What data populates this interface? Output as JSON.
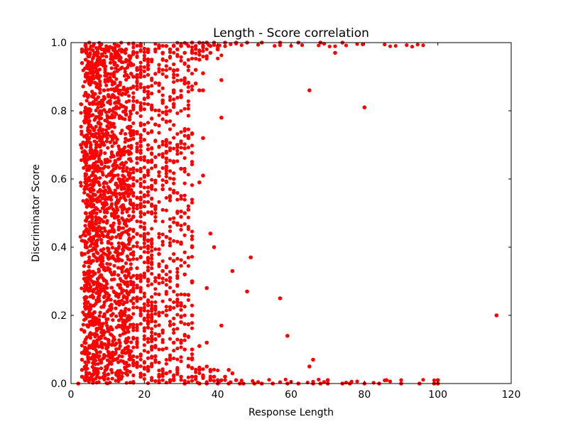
{
  "chart_data": {
    "type": "scatter",
    "title": "Length - Score correlation",
    "xlabel": "Response Length",
    "ylabel": "Discriminator Score",
    "xlim": [
      0,
      120
    ],
    "ylim": [
      0,
      1.0
    ],
    "xticks": [
      0,
      20,
      40,
      60,
      80,
      100,
      120
    ],
    "yticks": [
      0.0,
      0.2,
      0.4,
      0.6,
      0.8,
      1.0
    ],
    "xtick_labels": [
      "0",
      "20",
      "40",
      "60",
      "80",
      "100",
      "120"
    ],
    "ytick_labels": [
      "0.0",
      "0.2",
      "0.4",
      "0.6",
      "0.8",
      "1.0"
    ],
    "grid": false,
    "point_color": "#ff0000",
    "series": [
      {
        "points": [
          [
            2,
            0.0
          ],
          [
            3,
            0.98
          ],
          [
            3,
            0.94
          ],
          [
            3,
            0.09
          ],
          [
            3,
            0.07
          ],
          [
            3,
            0.04
          ],
          [
            3,
            0.02
          ],
          [
            4,
            0.99
          ],
          [
            4,
            0.95
          ],
          [
            4,
            0.9
          ],
          [
            4,
            0.85
          ],
          [
            4,
            0.8
          ],
          [
            4,
            0.7
          ],
          [
            4,
            0.6
          ],
          [
            4,
            0.5
          ],
          [
            4,
            0.4
          ],
          [
            4,
            0.3
          ],
          [
            4,
            0.2
          ],
          [
            4,
            0.1
          ],
          [
            4,
            0.05
          ],
          [
            4,
            0.01
          ],
          [
            5,
            1.0
          ],
          [
            5,
            0.93
          ],
          [
            5,
            0.88
          ],
          [
            5,
            0.77
          ],
          [
            5,
            0.66
          ],
          [
            5,
            0.55
          ],
          [
            5,
            0.44
          ],
          [
            5,
            0.33
          ],
          [
            5,
            0.22
          ],
          [
            5,
            0.11
          ],
          [
            5,
            0.03
          ],
          [
            6,
            0.99
          ],
          [
            6,
            0.91
          ],
          [
            6,
            0.82
          ],
          [
            6,
            0.73
          ],
          [
            6,
            0.64
          ],
          [
            6,
            0.45
          ],
          [
            6,
            0.36
          ],
          [
            6,
            0.27
          ],
          [
            6,
            0.18
          ],
          [
            6,
            0.06
          ],
          [
            7,
            0.97
          ],
          [
            7,
            0.87
          ],
          [
            7,
            0.68
          ],
          [
            7,
            0.48
          ],
          [
            7,
            0.28
          ],
          [
            7,
            0.08
          ],
          [
            9,
            0.98
          ],
          [
            9,
            0.86
          ],
          [
            9,
            0.7
          ],
          [
            9,
            0.52
          ],
          [
            9,
            0.34
          ],
          [
            9,
            0.15
          ],
          [
            9,
            0.02
          ],
          [
            11,
            0.96
          ],
          [
            11,
            0.84
          ],
          [
            11,
            0.62
          ],
          [
            11,
            0.41
          ],
          [
            11,
            0.2
          ],
          [
            11,
            0.04
          ],
          [
            13,
            0.99
          ],
          [
            13,
            0.83
          ],
          [
            13,
            0.6
          ],
          [
            13,
            0.38
          ],
          [
            13,
            0.17
          ],
          [
            13,
            0.01
          ],
          [
            15,
            0.98
          ],
          [
            15,
            0.79
          ],
          [
            15,
            0.56
          ],
          [
            15,
            0.33
          ],
          [
            15,
            0.12
          ],
          [
            15,
            0.03
          ],
          [
            17,
            0.97
          ],
          [
            17,
            0.9
          ],
          [
            17,
            0.74
          ],
          [
            17,
            0.49
          ],
          [
            17,
            0.25
          ],
          [
            17,
            0.06
          ],
          [
            19,
            0.99
          ],
          [
            19,
            0.92
          ],
          [
            19,
            0.71
          ],
          [
            19,
            0.46
          ],
          [
            19,
            0.22
          ],
          [
            19,
            0.02
          ],
          [
            21,
            0.98
          ],
          [
            21,
            0.87
          ],
          [
            21,
            0.65
          ],
          [
            21,
            0.42
          ],
          [
            21,
            0.18
          ],
          [
            21,
            0.04
          ],
          [
            22,
            0.95
          ],
          [
            22,
            0.81
          ],
          [
            22,
            0.58
          ],
          [
            22,
            0.35
          ],
          [
            22,
            0.13
          ],
          [
            22,
            0.01
          ],
          [
            23,
            0.98
          ],
          [
            23,
            0.76
          ],
          [
            23,
            0.52
          ],
          [
            23,
            0.3
          ],
          [
            23,
            0.08
          ],
          [
            24,
            0.99
          ],
          [
            24,
            0.88
          ],
          [
            24,
            0.62
          ],
          [
            24,
            0.38
          ],
          [
            24,
            0.14
          ],
          [
            24,
            0.02
          ],
          [
            25,
            0.97
          ],
          [
            25,
            0.83
          ],
          [
            25,
            0.57
          ],
          [
            25,
            0.33
          ],
          [
            25,
            0.1
          ],
          [
            26,
            0.99
          ],
          [
            26,
            0.9
          ],
          [
            26,
            0.68
          ],
          [
            26,
            0.43
          ],
          [
            26,
            0.2
          ],
          [
            26,
            0.03
          ],
          [
            27,
            0.98
          ],
          [
            27,
            0.8
          ],
          [
            27,
            0.55
          ],
          [
            27,
            0.31
          ],
          [
            27,
            0.07
          ],
          [
            28,
            0.99
          ],
          [
            28,
            0.86
          ],
          [
            28,
            0.6
          ],
          [
            28,
            0.36
          ],
          [
            28,
            0.12
          ],
          [
            28,
            0.01
          ],
          [
            29,
            0.98
          ],
          [
            29,
            0.92
          ],
          [
            29,
            0.7
          ],
          [
            29,
            0.47
          ],
          [
            29,
            0.24
          ],
          [
            29,
            0.04
          ],
          [
            30,
            0.99
          ],
          [
            30,
            0.84
          ],
          [
            30,
            0.63
          ],
          [
            30,
            0.41
          ],
          [
            30,
            0.18
          ],
          [
            30,
            0.02
          ],
          [
            31,
            0.97
          ],
          [
            31,
            0.88
          ],
          [
            31,
            0.69
          ],
          [
            31,
            0.5
          ],
          [
            31,
            0.32
          ],
          [
            31,
            0.1
          ],
          [
            31,
            0.0
          ],
          [
            32,
            0.99
          ],
          [
            32,
            0.93
          ],
          [
            32,
            0.72
          ],
          [
            32,
            0.51
          ],
          [
            32,
            0.26
          ],
          [
            32,
            0.05
          ],
          [
            33,
            1.0
          ],
          [
            33,
            0.97
          ],
          [
            33,
            0.4
          ],
          [
            33,
            0.3
          ],
          [
            33,
            0.2
          ],
          [
            33,
            0.1
          ],
          [
            33,
            0.02
          ],
          [
            34,
            0.99
          ],
          [
            34,
            0.92
          ],
          [
            34,
            0.88
          ],
          [
            34,
            0.02
          ],
          [
            35,
            1.0
          ],
          [
            35,
            0.95
          ],
          [
            35,
            0.86
          ],
          [
            35,
            0.59
          ],
          [
            35,
            0.11
          ],
          [
            35,
            0.04
          ],
          [
            35,
            0.0
          ],
          [
            36,
            0.99
          ],
          [
            36,
            0.91
          ],
          [
            36,
            0.86
          ],
          [
            36,
            0.72
          ],
          [
            36,
            0.61
          ],
          [
            36,
            0.02
          ],
          [
            37,
            1.0
          ],
          [
            37,
            0.96
          ],
          [
            37,
            0.28
          ],
          [
            37,
            0.12
          ],
          [
            37,
            0.05
          ],
          [
            37,
            0.0
          ],
          [
            38,
            0.99
          ],
          [
            38,
            0.97
          ],
          [
            38,
            0.04
          ],
          [
            38,
            0.44
          ],
          [
            38,
            0.01
          ],
          [
            39,
            1.0
          ],
          [
            39,
            0.4
          ],
          [
            39,
            0.02
          ],
          [
            40,
            0.99
          ],
          [
            40,
            0.98
          ],
          [
            40,
            0.01
          ],
          [
            40,
            0.0
          ],
          [
            41,
            0.89
          ],
          [
            41,
            0.78
          ],
          [
            41,
            0.17
          ],
          [
            42,
            1.0
          ],
          [
            42,
            0.02
          ],
          [
            43,
            0.0
          ],
          [
            43,
            0.04
          ],
          [
            44,
            0.33
          ],
          [
            44,
            0.03
          ],
          [
            45,
            1.0
          ],
          [
            45,
            0.01
          ],
          [
            46,
            0.0
          ],
          [
            47,
            0.0
          ],
          [
            48,
            0.27
          ],
          [
            48,
            1.0
          ],
          [
            49,
            0.37
          ],
          [
            50,
            0.0
          ],
          [
            52,
            1.0
          ],
          [
            52,
            0.0
          ],
          [
            55,
            0.0
          ],
          [
            57,
            0.25
          ],
          [
            57,
            1.0
          ],
          [
            59,
            0.14
          ],
          [
            59,
            0.0
          ],
          [
            62,
            1.0
          ],
          [
            62,
            0.0
          ],
          [
            65,
            0.86
          ],
          [
            65,
            0.05
          ],
          [
            66,
            0.07
          ],
          [
            66,
            0.0
          ],
          [
            68,
            1.0
          ],
          [
            68,
            0.0
          ],
          [
            70,
            0.0
          ],
          [
            70,
            0.01
          ],
          [
            72,
            0.97
          ],
          [
            74,
            1.0
          ],
          [
            74,
            0.0
          ],
          [
            76,
            0.0
          ],
          [
            80,
            0.81
          ],
          [
            80,
            0.0
          ],
          [
            84,
            0.0
          ],
          [
            86,
            0.01
          ],
          [
            90,
            0.0
          ],
          [
            95,
            0.0
          ],
          [
            99,
            0.0
          ],
          [
            100,
            0.01
          ],
          [
            100,
            0.0
          ],
          [
            116,
            0.2
          ]
        ]
      }
    ]
  }
}
